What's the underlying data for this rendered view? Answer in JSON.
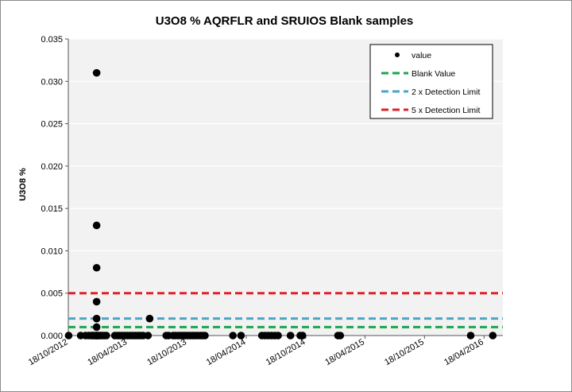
{
  "chart_data": {
    "type": "scatter",
    "title": "U3O8 % AQRFLR and SRUIOS Blank samples",
    "xlabel": "",
    "ylabel": "U3O8 %",
    "ylim": [
      0,
      0.035
    ],
    "yticks": [
      "0.000",
      "0.005",
      "0.010",
      "0.015",
      "0.020",
      "0.025",
      "0.030",
      "0.035"
    ],
    "xlim": [
      "2012-10-18",
      "2016-06-15"
    ],
    "xticks": [
      "18/10/2012",
      "18/04/2013",
      "18/10/2013",
      "18/04/2014",
      "18/10/2014",
      "18/04/2015",
      "18/10/2015",
      "18/04/2016"
    ],
    "grid": true,
    "legend_position": "top-right",
    "colors": {
      "plot_background": "#f2f2f2",
      "gridline": "#ffffff",
      "value": "#000000",
      "blank": "#1aa64a",
      "twice_dl": "#4aa6c6",
      "five_dl": "#e0202a"
    },
    "series": [
      {
        "name": "value",
        "kind": "points",
        "x": [
          "2012-10-19",
          "2012-11-25",
          "2012-12-10",
          "2012-12-20",
          "2012-12-28",
          "2013-01-01",
          "2013-01-04",
          "2013-01-08",
          "2013-01-11",
          "2013-01-13",
          "2013-01-13",
          "2013-01-13",
          "2013-01-13",
          "2013-01-13",
          "2013-01-13",
          "2013-01-13",
          "2013-01-13",
          "2013-01-15",
          "2013-01-18",
          "2013-01-22",
          "2013-01-26",
          "2013-02-01",
          "2013-02-06",
          "2013-02-12",
          "2013-03-10",
          "2013-03-18",
          "2013-03-25",
          "2013-04-02",
          "2013-04-10",
          "2013-04-18",
          "2013-04-26",
          "2013-05-04",
          "2013-05-12",
          "2013-05-20",
          "2013-05-28",
          "2013-06-05",
          "2013-06-20",
          "2013-06-25",
          "2013-08-15",
          "2013-08-22",
          "2013-09-05",
          "2013-09-12",
          "2013-09-20",
          "2013-09-28",
          "2013-10-05",
          "2013-10-12",
          "2013-10-20",
          "2013-10-28",
          "2013-11-05",
          "2013-11-12",
          "2013-11-20",
          "2013-11-28",
          "2013-12-05",
          "2013-12-12",
          "2014-03-08",
          "2014-04-02",
          "2014-06-05",
          "2014-06-15",
          "2014-06-25",
          "2014-07-05",
          "2014-07-15",
          "2014-07-25",
          "2014-09-01",
          "2014-10-01",
          "2014-10-08",
          "2015-01-25",
          "2015-02-01",
          "2016-03-08",
          "2016-05-15"
        ],
        "y": [
          0,
          0,
          0,
          0,
          0,
          0,
          0,
          0,
          0,
          0.031,
          0.013,
          0.008,
          0.004,
          0.002,
          0.001,
          0,
          0,
          0,
          0,
          0,
          0,
          0,
          0,
          0,
          0,
          0,
          0,
          0,
          0,
          0,
          0,
          0,
          0,
          0,
          0,
          0,
          0,
          0.002,
          0,
          0,
          0,
          0,
          0,
          0,
          0,
          0,
          0,
          0,
          0,
          0,
          0,
          0,
          0,
          0,
          0,
          0,
          0,
          0,
          0,
          0,
          0,
          0,
          0,
          0,
          0,
          0,
          0,
          0,
          0
        ]
      },
      {
        "name": "Blank Value",
        "kind": "hline",
        "value": 0.001
      },
      {
        "name": "2 x Detection Limit",
        "kind": "hline",
        "value": 0.002
      },
      {
        "name": "5 x Detection Limit",
        "kind": "hline",
        "value": 0.005
      }
    ]
  }
}
